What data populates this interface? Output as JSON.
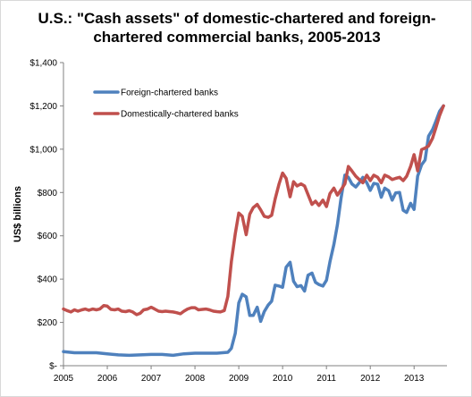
{
  "chart_data": {
    "type": "line",
    "title": "U.S.: \"Cash assets\" of domestic-chartered and foreign-chartered commercial banks, 2005-2013",
    "ylabel": "US$ billions",
    "xlabel": "",
    "x_ticks": [
      "2005",
      "2006",
      "2007",
      "2008",
      "2009",
      "2010",
      "2011",
      "2012",
      "2013"
    ],
    "y_ticks": [
      "$-",
      "$200",
      "$400",
      "$600",
      "$800",
      "$1,000",
      "$1,200",
      "$1,400"
    ],
    "ylim": [
      0,
      1400
    ],
    "xlim": [
      2005,
      2013.75
    ],
    "grid": false,
    "legend_position": "top-left",
    "series": [
      {
        "name": "Foreign-chartered banks",
        "color": "#4f81bd",
        "points": [
          [
            2005.0,
            65
          ],
          [
            2005.25,
            60
          ],
          [
            2005.5,
            60
          ],
          [
            2005.75,
            60
          ],
          [
            2006.0,
            55
          ],
          [
            2006.25,
            50
          ],
          [
            2006.5,
            48
          ],
          [
            2006.75,
            50
          ],
          [
            2007.0,
            52
          ],
          [
            2007.25,
            52
          ],
          [
            2007.5,
            48
          ],
          [
            2007.75,
            55
          ],
          [
            2008.0,
            58
          ],
          [
            2008.25,
            58
          ],
          [
            2008.5,
            58
          ],
          [
            2008.75,
            62
          ],
          [
            2008.83,
            80
          ],
          [
            2008.92,
            150
          ],
          [
            2009.0,
            290
          ],
          [
            2009.08,
            330
          ],
          [
            2009.17,
            318
          ],
          [
            2009.25,
            232
          ],
          [
            2009.33,
            232
          ],
          [
            2009.42,
            270
          ],
          [
            2009.5,
            205
          ],
          [
            2009.58,
            250
          ],
          [
            2009.67,
            280
          ],
          [
            2009.75,
            298
          ],
          [
            2009.83,
            372
          ],
          [
            2009.92,
            368
          ],
          [
            2010.0,
            362
          ],
          [
            2010.08,
            455
          ],
          [
            2010.17,
            478
          ],
          [
            2010.25,
            390
          ],
          [
            2010.33,
            365
          ],
          [
            2010.42,
            370
          ],
          [
            2010.5,
            345
          ],
          [
            2010.58,
            418
          ],
          [
            2010.67,
            428
          ],
          [
            2010.75,
            385
          ],
          [
            2010.83,
            375
          ],
          [
            2010.92,
            368
          ],
          [
            2011.0,
            395
          ],
          [
            2011.08,
            480
          ],
          [
            2011.17,
            560
          ],
          [
            2011.25,
            650
          ],
          [
            2011.33,
            770
          ],
          [
            2011.42,
            880
          ],
          [
            2011.5,
            870
          ],
          [
            2011.58,
            840
          ],
          [
            2011.67,
            825
          ],
          [
            2011.75,
            845
          ],
          [
            2011.83,
            870
          ],
          [
            2011.92,
            845
          ],
          [
            2012.0,
            810
          ],
          [
            2012.08,
            842
          ],
          [
            2012.17,
            838
          ],
          [
            2012.25,
            778
          ],
          [
            2012.33,
            820
          ],
          [
            2012.42,
            808
          ],
          [
            2012.5,
            765
          ],
          [
            2012.58,
            798
          ],
          [
            2012.67,
            800
          ],
          [
            2012.75,
            718
          ],
          [
            2012.83,
            708
          ],
          [
            2012.92,
            750
          ],
          [
            2013.0,
            722
          ],
          [
            2013.08,
            875
          ],
          [
            2013.17,
            928
          ],
          [
            2013.25,
            950
          ],
          [
            2013.33,
            1060
          ],
          [
            2013.42,
            1090
          ],
          [
            2013.5,
            1130
          ],
          [
            2013.58,
            1175
          ],
          [
            2013.67,
            1200
          ]
        ]
      },
      {
        "name": "Domestically-chartered banks",
        "color": "#c0504d",
        "points": [
          [
            2005.0,
            262
          ],
          [
            2005.08,
            255
          ],
          [
            2005.17,
            248
          ],
          [
            2005.25,
            258
          ],
          [
            2005.33,
            252
          ],
          [
            2005.42,
            258
          ],
          [
            2005.5,
            262
          ],
          [
            2005.58,
            256
          ],
          [
            2005.67,
            262
          ],
          [
            2005.75,
            258
          ],
          [
            2005.83,
            262
          ],
          [
            2005.92,
            278
          ],
          [
            2006.0,
            275
          ],
          [
            2006.08,
            260
          ],
          [
            2006.17,
            258
          ],
          [
            2006.25,
            262
          ],
          [
            2006.33,
            252
          ],
          [
            2006.42,
            250
          ],
          [
            2006.5,
            254
          ],
          [
            2006.58,
            248
          ],
          [
            2006.67,
            236
          ],
          [
            2006.75,
            242
          ],
          [
            2006.83,
            258
          ],
          [
            2006.92,
            262
          ],
          [
            2007.0,
            270
          ],
          [
            2007.08,
            262
          ],
          [
            2007.17,
            252
          ],
          [
            2007.25,
            250
          ],
          [
            2007.33,
            252
          ],
          [
            2007.42,
            250
          ],
          [
            2007.5,
            248
          ],
          [
            2007.58,
            245
          ],
          [
            2007.67,
            240
          ],
          [
            2007.75,
            252
          ],
          [
            2007.83,
            262
          ],
          [
            2007.92,
            268
          ],
          [
            2008.0,
            268
          ],
          [
            2008.08,
            258
          ],
          [
            2008.17,
            260
          ],
          [
            2008.25,
            262
          ],
          [
            2008.33,
            258
          ],
          [
            2008.42,
            252
          ],
          [
            2008.5,
            250
          ],
          [
            2008.58,
            248
          ],
          [
            2008.67,
            255
          ],
          [
            2008.75,
            320
          ],
          [
            2008.83,
            480
          ],
          [
            2008.92,
            610
          ],
          [
            2009.0,
            705
          ],
          [
            2009.08,
            690
          ],
          [
            2009.17,
            605
          ],
          [
            2009.25,
            700
          ],
          [
            2009.33,
            730
          ],
          [
            2009.42,
            745
          ],
          [
            2009.5,
            720
          ],
          [
            2009.58,
            690
          ],
          [
            2009.67,
            685
          ],
          [
            2009.75,
            695
          ],
          [
            2009.83,
            770
          ],
          [
            2009.92,
            840
          ],
          [
            2010.0,
            890
          ],
          [
            2010.08,
            865
          ],
          [
            2010.17,
            780
          ],
          [
            2010.25,
            850
          ],
          [
            2010.33,
            830
          ],
          [
            2010.42,
            840
          ],
          [
            2010.5,
            830
          ],
          [
            2010.58,
            790
          ],
          [
            2010.67,
            745
          ],
          [
            2010.75,
            760
          ],
          [
            2010.83,
            740
          ],
          [
            2010.92,
            765
          ],
          [
            2011.0,
            735
          ],
          [
            2011.08,
            795
          ],
          [
            2011.17,
            820
          ],
          [
            2011.25,
            788
          ],
          [
            2011.33,
            812
          ],
          [
            2011.42,
            840
          ],
          [
            2011.5,
            920
          ],
          [
            2011.58,
            900
          ],
          [
            2011.67,
            875
          ],
          [
            2011.75,
            860
          ],
          [
            2011.83,
            845
          ],
          [
            2011.92,
            880
          ],
          [
            2012.0,
            855
          ],
          [
            2012.08,
            880
          ],
          [
            2012.17,
            870
          ],
          [
            2012.25,
            845
          ],
          [
            2012.33,
            880
          ],
          [
            2012.42,
            872
          ],
          [
            2012.5,
            860
          ],
          [
            2012.58,
            865
          ],
          [
            2012.67,
            870
          ],
          [
            2012.75,
            855
          ],
          [
            2012.83,
            875
          ],
          [
            2012.92,
            920
          ],
          [
            2013.0,
            975
          ],
          [
            2013.08,
            900
          ],
          [
            2013.17,
            998
          ],
          [
            2013.25,
            1005
          ],
          [
            2013.33,
            1015
          ],
          [
            2013.42,
            1050
          ],
          [
            2013.5,
            1100
          ],
          [
            2013.58,
            1155
          ],
          [
            2013.67,
            1200
          ]
        ]
      }
    ]
  }
}
